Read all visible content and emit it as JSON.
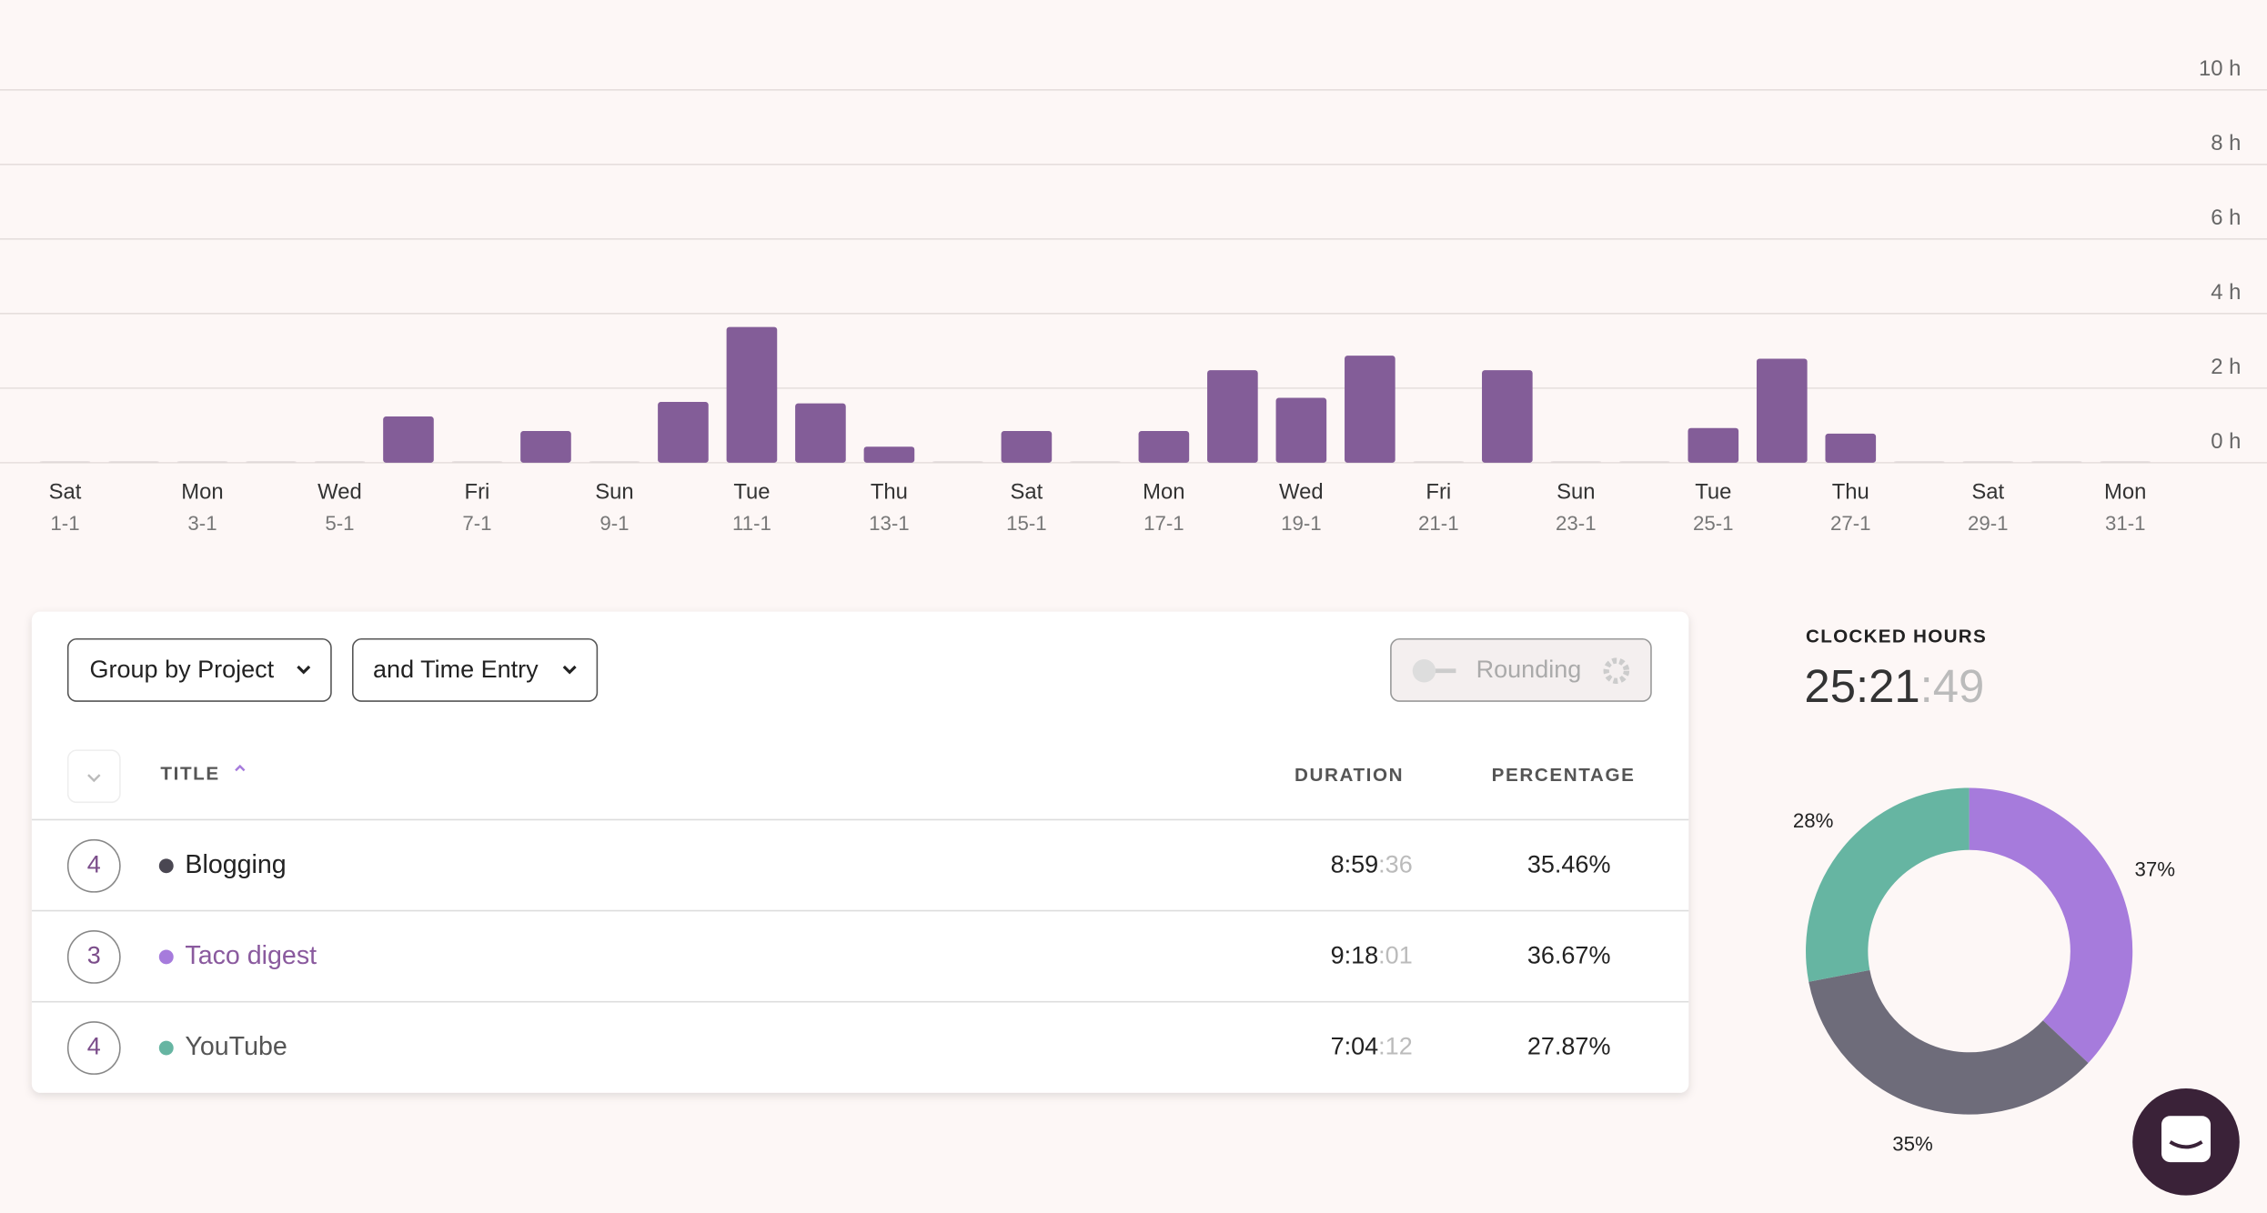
{
  "chart_data": [
    {
      "type": "bar",
      "color": "#835d98",
      "categories": [
        "Sat",
        null,
        "Mon",
        null,
        "Wed",
        null,
        "Fri",
        null,
        "Sun",
        null,
        "Tue",
        null,
        "Thu",
        null,
        "Sat",
        null,
        "Mon",
        null,
        "Wed",
        null,
        "Fri",
        null,
        "Sun",
        null,
        "Tue",
        null,
        "Thu",
        null,
        "Sat",
        null,
        "Mon"
      ],
      "dates": [
        "1-1",
        null,
        "3-1",
        null,
        "5-1",
        null,
        "7-1",
        null,
        "9-1",
        null,
        "11-1",
        null,
        "13-1",
        null,
        "15-1",
        null,
        "17-1",
        null,
        "19-1",
        null,
        "21-1",
        null,
        "23-1",
        null,
        "25-1",
        null,
        "27-1",
        null,
        "29-1",
        null,
        "31-1"
      ],
      "values": [
        0,
        0,
        0,
        0,
        0,
        1.24,
        0,
        0.85,
        0,
        1.63,
        3.64,
        1.59,
        0.43,
        0,
        0.85,
        0,
        0.85,
        2.48,
        1.74,
        2.87,
        0,
        2.48,
        0,
        0,
        0.93,
        2.79,
        0.78,
        0,
        0,
        0,
        0
      ],
      "ylim": [
        0,
        10
      ],
      "yticks": [
        {
          "value": 0,
          "label": "0 h"
        },
        {
          "value": 2,
          "label": "2 h"
        },
        {
          "value": 4,
          "label": "4 h"
        },
        {
          "value": 6,
          "label": "6 h"
        },
        {
          "value": 8,
          "label": "8 h"
        },
        {
          "value": 10,
          "label": "10 h"
        }
      ],
      "grid": true
    },
    {
      "type": "pie",
      "values": [
        37,
        35,
        28
      ],
      "value_labels": [
        "37%",
        "35%",
        "28%"
      ],
      "colors": [
        "#a67bdc",
        "#6e6c7a",
        "#66b5a2"
      ]
    }
  ],
  "controls": {
    "group": "Group by Project",
    "subgroup": "and Time Entry",
    "rounding": "Rounding"
  },
  "table": {
    "columns": [
      "TITLE",
      "DURATION",
      "PERCENTAGE"
    ],
    "rows": [
      {
        "count": "4",
        "title": "Blogging",
        "color": "#4a4752",
        "duration": "8:59",
        "seconds": ":36",
        "percentage": "35.46%"
      },
      {
        "count": "3",
        "title": "Taco digest",
        "color": "#a67bdc",
        "duration": "9:18",
        "seconds": ":01",
        "percentage": "36.67%"
      },
      {
        "count": "4",
        "title": "YouTube",
        "color": "#66b5a2",
        "duration": "7:04",
        "seconds": ":12",
        "percentage": "27.87%"
      }
    ]
  },
  "summary": {
    "label": "CLOCKED HOURS",
    "time": "25:21",
    "seconds": ":49"
  }
}
